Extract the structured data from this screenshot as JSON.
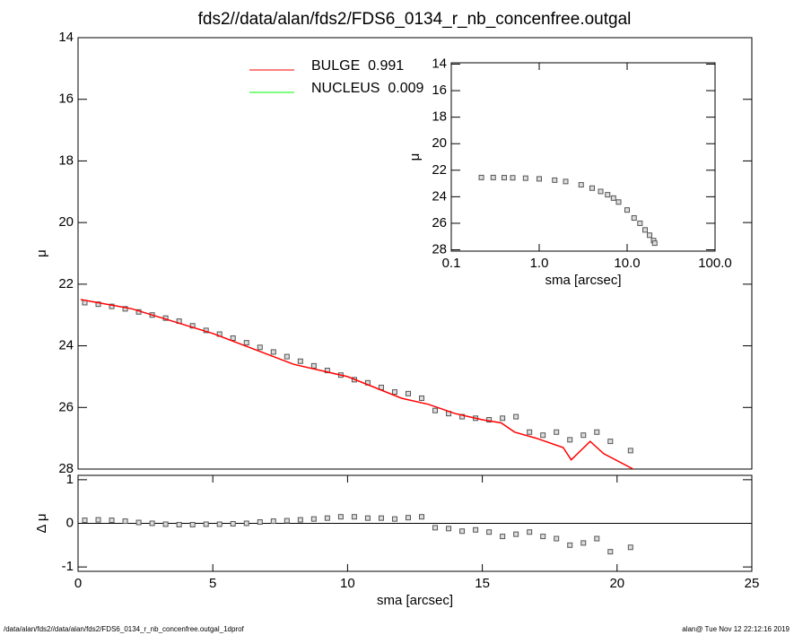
{
  "chart_data": [
    {
      "type": "scatter",
      "title": "fds2//data/alan/fds2/FDS6_0134_r_nb_concenfree.outgal",
      "y_label": "μ",
      "xlim": [
        0,
        25
      ],
      "ylim": [
        28,
        14
      ],
      "yticks": [
        14,
        16,
        18,
        20,
        22,
        24,
        26,
        28
      ],
      "marker_color": "#555555",
      "x": [
        0.25,
        0.75,
        1.25,
        1.75,
        2.25,
        2.75,
        3.25,
        3.75,
        4.25,
        4.75,
        5.25,
        5.75,
        6.25,
        6.75,
        7.25,
        7.75,
        8.25,
        8.75,
        9.25,
        9.75,
        10.25,
        10.75,
        11.25,
        11.75,
        12.25,
        12.75,
        13.25,
        13.75,
        14.25,
        14.75,
        15.25,
        15.75,
        16.25,
        16.75,
        17.25,
        17.75,
        18.25,
        18.75,
        19.25,
        19.75,
        20.5
      ],
      "values": [
        22.6,
        22.65,
        22.72,
        22.8,
        22.9,
        23.0,
        23.1,
        23.2,
        23.35,
        23.5,
        23.62,
        23.75,
        23.9,
        24.05,
        24.2,
        24.35,
        24.5,
        24.65,
        24.8,
        24.95,
        25.1,
        25.2,
        25.35,
        25.5,
        25.55,
        25.7,
        26.1,
        26.2,
        26.3,
        26.35,
        26.4,
        26.35,
        26.3,
        26.8,
        26.9,
        26.8,
        27.05,
        26.9,
        26.8,
        27.1,
        27.4
      ],
      "series": [
        {
          "name": "BULGE  0.991",
          "color": "#ff0000",
          "x": [
            0.1,
            2,
            5,
            8,
            10,
            12,
            13,
            14,
            15,
            15.7,
            16.2,
            17,
            18,
            18.3,
            19,
            19.5,
            20.6
          ],
          "values": [
            22.5,
            22.8,
            23.6,
            24.6,
            25.0,
            25.7,
            25.9,
            26.2,
            26.4,
            26.5,
            26.8,
            27.0,
            27.3,
            27.7,
            27.1,
            27.5,
            28.0
          ]
        },
        {
          "name": "NUCLEUS  0.009",
          "color": "#00ff00",
          "x": [],
          "values": []
        }
      ]
    },
    {
      "type": "scatter",
      "y_label": "Δ μ",
      "x_label": "sma [arcsec]",
      "xlim": [
        0,
        25
      ],
      "xticks": [
        0,
        5,
        10,
        15,
        20,
        25
      ],
      "ylim": [
        -1.1,
        1.1
      ],
      "yticks": [
        -1,
        0,
        1
      ],
      "hline": 0,
      "marker_color": "#555555",
      "x": [
        0.25,
        0.75,
        1.25,
        1.75,
        2.25,
        2.75,
        3.25,
        3.75,
        4.25,
        4.75,
        5.25,
        5.75,
        6.25,
        6.75,
        7.25,
        7.75,
        8.25,
        8.75,
        9.25,
        9.75,
        10.25,
        10.75,
        11.25,
        11.75,
        12.25,
        12.75,
        13.25,
        13.75,
        14.25,
        14.75,
        15.25,
        15.75,
        16.25,
        16.75,
        17.25,
        17.75,
        18.25,
        18.75,
        19.25,
        19.75,
        20.5
      ],
      "values": [
        0.07,
        0.08,
        0.07,
        0.05,
        0.02,
        0.0,
        -0.02,
        -0.03,
        -0.03,
        -0.02,
        -0.02,
        -0.01,
        0.0,
        0.03,
        0.05,
        0.06,
        0.08,
        0.1,
        0.12,
        0.15,
        0.15,
        0.12,
        0.12,
        0.1,
        0.13,
        0.15,
        -0.1,
        -0.12,
        -0.18,
        -0.15,
        -0.2,
        -0.3,
        -0.25,
        -0.2,
        -0.3,
        -0.35,
        -0.5,
        -0.45,
        -0.35,
        -0.65,
        -0.55
      ]
    },
    {
      "type": "scatter",
      "y_label": "μ",
      "x_label": "sma [arcsec]",
      "xlog": true,
      "xlim": [
        0.1,
        100
      ],
      "xticks": [
        {
          "value": 0.1,
          "label": "0.1"
        },
        {
          "value": 1,
          "label": "1.0"
        },
        {
          "value": 10,
          "label": "10.0"
        },
        {
          "value": 100,
          "label": "100.0"
        }
      ],
      "ylim": [
        28.1,
        13.9
      ],
      "yticks": [
        14,
        16,
        18,
        20,
        22,
        24,
        26,
        28
      ],
      "marker_color": "#555555",
      "x": [
        0.22,
        0.3,
        0.4,
        0.5,
        0.7,
        1,
        1.5,
        2,
        3,
        4,
        5,
        6,
        7,
        8,
        10,
        12,
        14,
        16,
        18,
        20,
        20.6
      ],
      "values": [
        22.55,
        22.55,
        22.56,
        22.57,
        22.6,
        22.65,
        22.75,
        22.85,
        23.1,
        23.35,
        23.6,
        23.85,
        24.1,
        24.4,
        25.0,
        25.6,
        26.0,
        26.5,
        26.9,
        27.3,
        27.5
      ]
    }
  ],
  "footer": {
    "left": "/data/alan/fds2//data/alan/fds2/FDS6_0134_r_nb_concenfree.outgal_1dprof",
    "right": "alan@  Tue Nov 12 22:12:16 2019"
  }
}
